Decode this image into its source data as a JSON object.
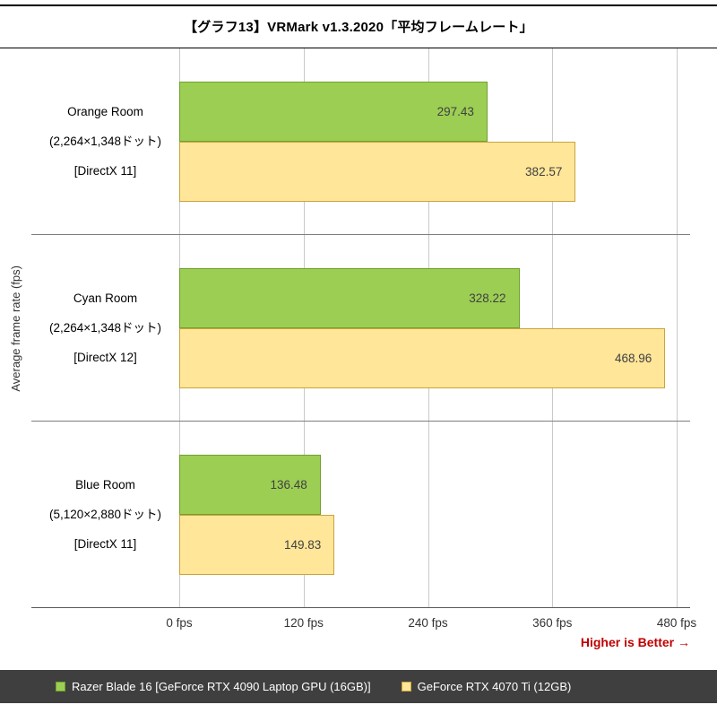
{
  "chart_data": {
    "type": "bar",
    "orientation": "horizontal",
    "title": "【グラフ13】VRMark v1.3.2020「平均フレームレート」",
    "ylabel": "Average frame rate (fps)",
    "xlim": [
      0,
      480
    ],
    "x_ticks": [
      0,
      120,
      240,
      360,
      480
    ],
    "x_tick_labels": [
      "0 fps",
      "120 fps",
      "240 fps",
      "360 fps",
      "480 fps"
    ],
    "categories": [
      {
        "lines": [
          "Orange Room",
          "(2,264×1,348ドット)",
          "[DirectX 11]"
        ]
      },
      {
        "lines": [
          "Cyan Room",
          "(2,264×1,348ドット)",
          "[DirectX 12]"
        ]
      },
      {
        "lines": [
          "Blue Room",
          "(5,120×2,880ドット)",
          "[DirectX 11]"
        ]
      }
    ],
    "series": [
      {
        "name": "Razer Blade 16 [GeForce RTX 4090 Laptop GPU (16GB)]",
        "color": "#9CCE54",
        "border_color": "#70A12F",
        "values": [
          297.43,
          328.22,
          136.48
        ]
      },
      {
        "name": "GeForce RTX 4070 Ti (12GB)",
        "color": "#FFE699",
        "border_color": "#C9A43B",
        "values": [
          382.57,
          468.96,
          149.83
        ]
      }
    ],
    "note": "Higher is Better →",
    "note_color": "#C00000",
    "grid": true,
    "legend_position": "bottom"
  },
  "legend": {
    "background": "#3F3F3F",
    "text_color": "#FFFFFF"
  }
}
